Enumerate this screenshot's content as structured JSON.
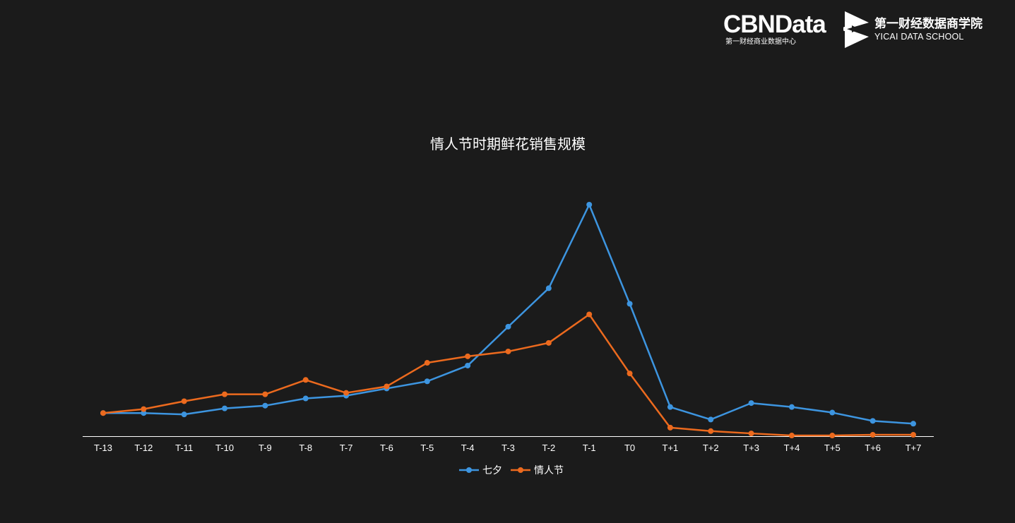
{
  "branding": {
    "cbn_wordmark": "CBNData",
    "cbn_subtitle": "第一财经商业数据中心",
    "yicai_cn": "第一财经数据商学院",
    "yicai_en": "YICAI DATA SCHOOL"
  },
  "chart_data": {
    "type": "line",
    "title": "情人节时期鲜花销售规模",
    "xlabel": "",
    "ylabel": "",
    "categories": [
      "T-13",
      "T-12",
      "T-11",
      "T-10",
      "T-9",
      "T-8",
      "T-7",
      "T-6",
      "T-5",
      "T-4",
      "T-3",
      "T-2",
      "T-1",
      "T0",
      "T+1",
      "T+2",
      "T+3",
      "T+4",
      "T+5",
      "T+6",
      "T+7"
    ],
    "ylim": [
      0,
      100
    ],
    "grid": false,
    "legend_position": "bottom-center",
    "series": [
      {
        "name": "七夕",
        "color": "#3d95e0",
        "values": [
          10,
          10,
          9.4,
          12,
          13.2,
          16.3,
          17.5,
          20.6,
          23.7,
          30.5,
          47.3,
          63.9,
          100,
          57.2,
          12.6,
          7.2,
          14.3,
          12.6,
          10.2,
          6.6,
          5.4
        ]
      },
      {
        "name": "情人节",
        "color": "#ec6a1e",
        "values": [
          10,
          11.7,
          15.1,
          18.1,
          18.1,
          24.3,
          18.7,
          21.5,
          31.7,
          34.5,
          36.6,
          40.3,
          52.6,
          27.1,
          3.7,
          2.2,
          1.2,
          0.3,
          0.3,
          0.6,
          0.6
        ]
      }
    ]
  }
}
